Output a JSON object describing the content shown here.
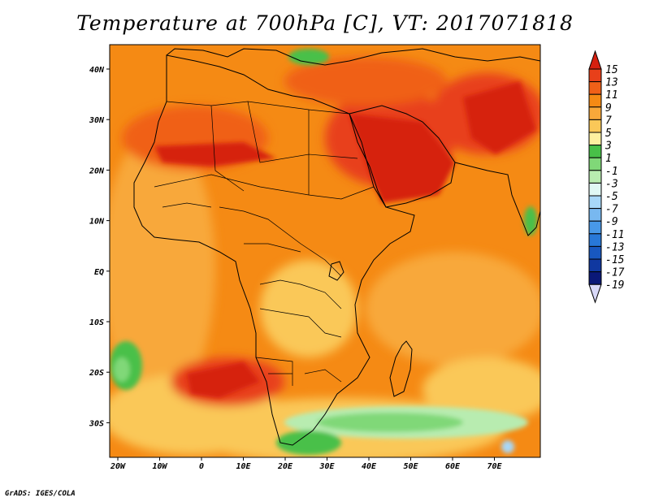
{
  "title": "Temperature at 700hPa [C], VT: 2017071818",
  "credit": "GrADS: IGES/COLA",
  "map": {
    "lon_labels": [
      "20W",
      "10W",
      "0",
      "10E",
      "20E",
      "30E",
      "40E",
      "50E",
      "60E",
      "70E"
    ],
    "lat_labels": [
      "40N",
      "30N",
      "20N",
      "10N",
      "EQ",
      "10S",
      "20S",
      "30S"
    ]
  },
  "colorbar": {
    "labels": [
      "15",
      "13",
      "11",
      "9",
      "7",
      "5",
      "3",
      "1",
      "-1",
      "-3",
      "-5",
      "-7",
      "-9",
      "-11",
      "-13",
      "-15",
      "-17",
      "-19"
    ],
    "colors": [
      "#d62010",
      "#e8401a",
      "#f06018",
      "#f58a14",
      "#f8a83a",
      "#fac858",
      "#fef0a0",
      "#48c048",
      "#80d878",
      "#b8ecb0",
      "#e0f8f4",
      "#a8d8f8",
      "#78b8f0",
      "#4898e8",
      "#2878d8",
      "#1858c0",
      "#1038a0",
      "#0a1878",
      "#d8d8f8"
    ]
  }
}
